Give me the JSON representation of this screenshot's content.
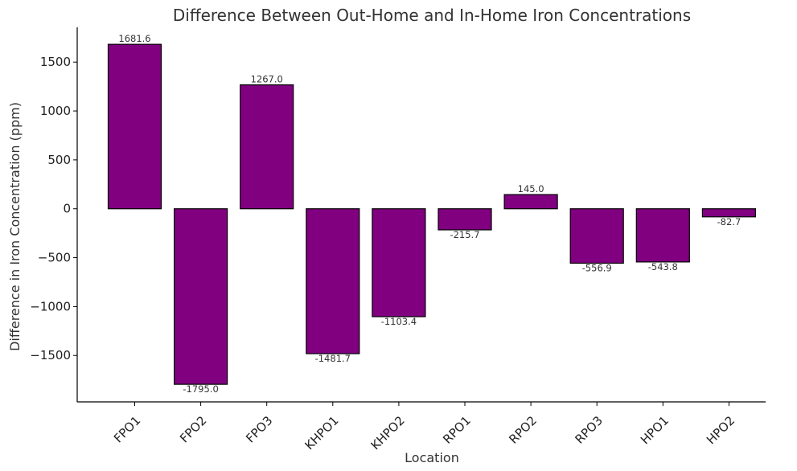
{
  "chart_data": {
    "type": "bar",
    "title": "Difference Between Out-Home and In-Home Iron Concentrations",
    "xlabel": "Location",
    "ylabel": "Difference in Iron Concentration (ppm)",
    "categories": [
      "FPO1",
      "FPO2",
      "FPO3",
      "KHPO1",
      "KHPO2",
      "RPO1",
      "RPO2",
      "RPO3",
      "HPO1",
      "HPO2"
    ],
    "values": [
      1681.6,
      -1795.0,
      1267.0,
      -1481.7,
      -1103.4,
      -215.7,
      145.0,
      -556.9,
      -543.8,
      -82.7
    ],
    "data_labels": [
      "1681.6",
      "-1795.0",
      "1267.0",
      "-1481.7",
      "-1103.4",
      "-215.7",
      "145.0",
      "-556.9",
      "-543.8",
      "-82.7"
    ],
    "ylim": [
      -1974.8,
      1855.4
    ],
    "yticks": [
      1500,
      1000,
      500,
      0,
      -500,
      -1000,
      -1500
    ],
    "ytick_labels": [
      "1500",
      "1000",
      "500",
      "0",
      "−500",
      "−1000",
      "−1500"
    ],
    "grid": false,
    "bar_color": "#800080",
    "bar_edge_color": "#000000"
  }
}
